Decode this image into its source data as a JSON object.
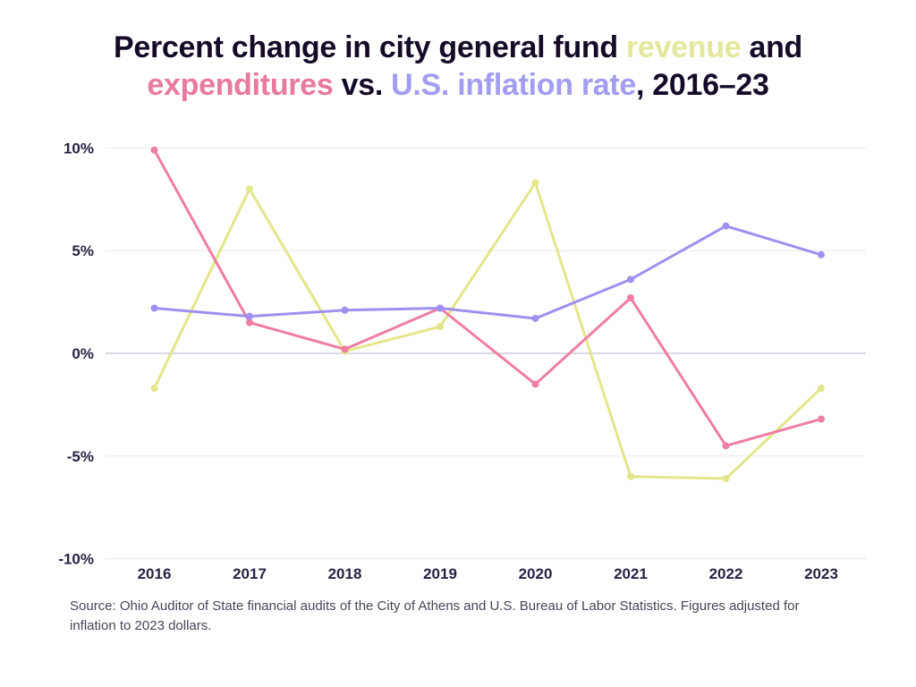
{
  "title": {
    "full_text": "Percent change in city general fund revenue and expenditures vs. U.S. inflation rate, 2016–23",
    "colors": {
      "dark": "#150b28",
      "revenue": "#e5e79d",
      "expenditures": "#e8799f",
      "inflation": "#a39df2"
    },
    "segments": [
      {
        "text": "Percent change in city general fund ",
        "color": "dark"
      },
      {
        "text": "revenue",
        "color": "revenue"
      },
      {
        "text": " and",
        "color": "dark"
      },
      {
        "break": true
      },
      {
        "text": "expenditures",
        "color": "expenditures"
      },
      {
        "text": " vs. ",
        "color": "dark"
      },
      {
        "text": "U.S. inflation rate",
        "color": "inflation"
      },
      {
        "text": ", 2016–23",
        "color": "dark"
      }
    ]
  },
  "chart_data": {
    "type": "line",
    "title": "Percent change in city general fund revenue and expenditures vs. U.S. inflation rate, 2016–23",
    "xlabel": "",
    "ylabel": "",
    "x": [
      "2016",
      "2017",
      "2018",
      "2019",
      "2020",
      "2021",
      "2022",
      "2023"
    ],
    "series": [
      {
        "name": "revenue",
        "color": "#e3e68a",
        "values": [
          -1.7,
          8.0,
          0.1,
          1.3,
          8.3,
          -6.0,
          -6.1,
          -1.7
        ]
      },
      {
        "name": "expenditures",
        "color": "#ef7da4",
        "values": [
          9.9,
          1.5,
          0.2,
          2.2,
          -1.5,
          2.7,
          -4.5,
          -3.2
        ]
      },
      {
        "name": "inflation",
        "color": "#9f90ef",
        "values": [
          2.2,
          1.8,
          2.1,
          2.2,
          1.7,
          3.6,
          6.2,
          4.8
        ]
      }
    ],
    "yticks": [
      {
        "value": 10,
        "label": "10%"
      },
      {
        "value": 5,
        "label": "5%"
      },
      {
        "value": 0,
        "label": "0%"
      },
      {
        "value": -5,
        "label": "-5%"
      },
      {
        "value": -10,
        "label": "-10%"
      }
    ],
    "ylim": [
      -10,
      10
    ],
    "grid": true,
    "legend_position": "none (series identified by title colors)",
    "marker": "dot"
  },
  "source": {
    "text": "Source: Ohio Auditor of State financial audits of the City of Athens and U.S. Bureau of Labor Statistics. Figures adjusted for inflation to 2023 dollars."
  }
}
